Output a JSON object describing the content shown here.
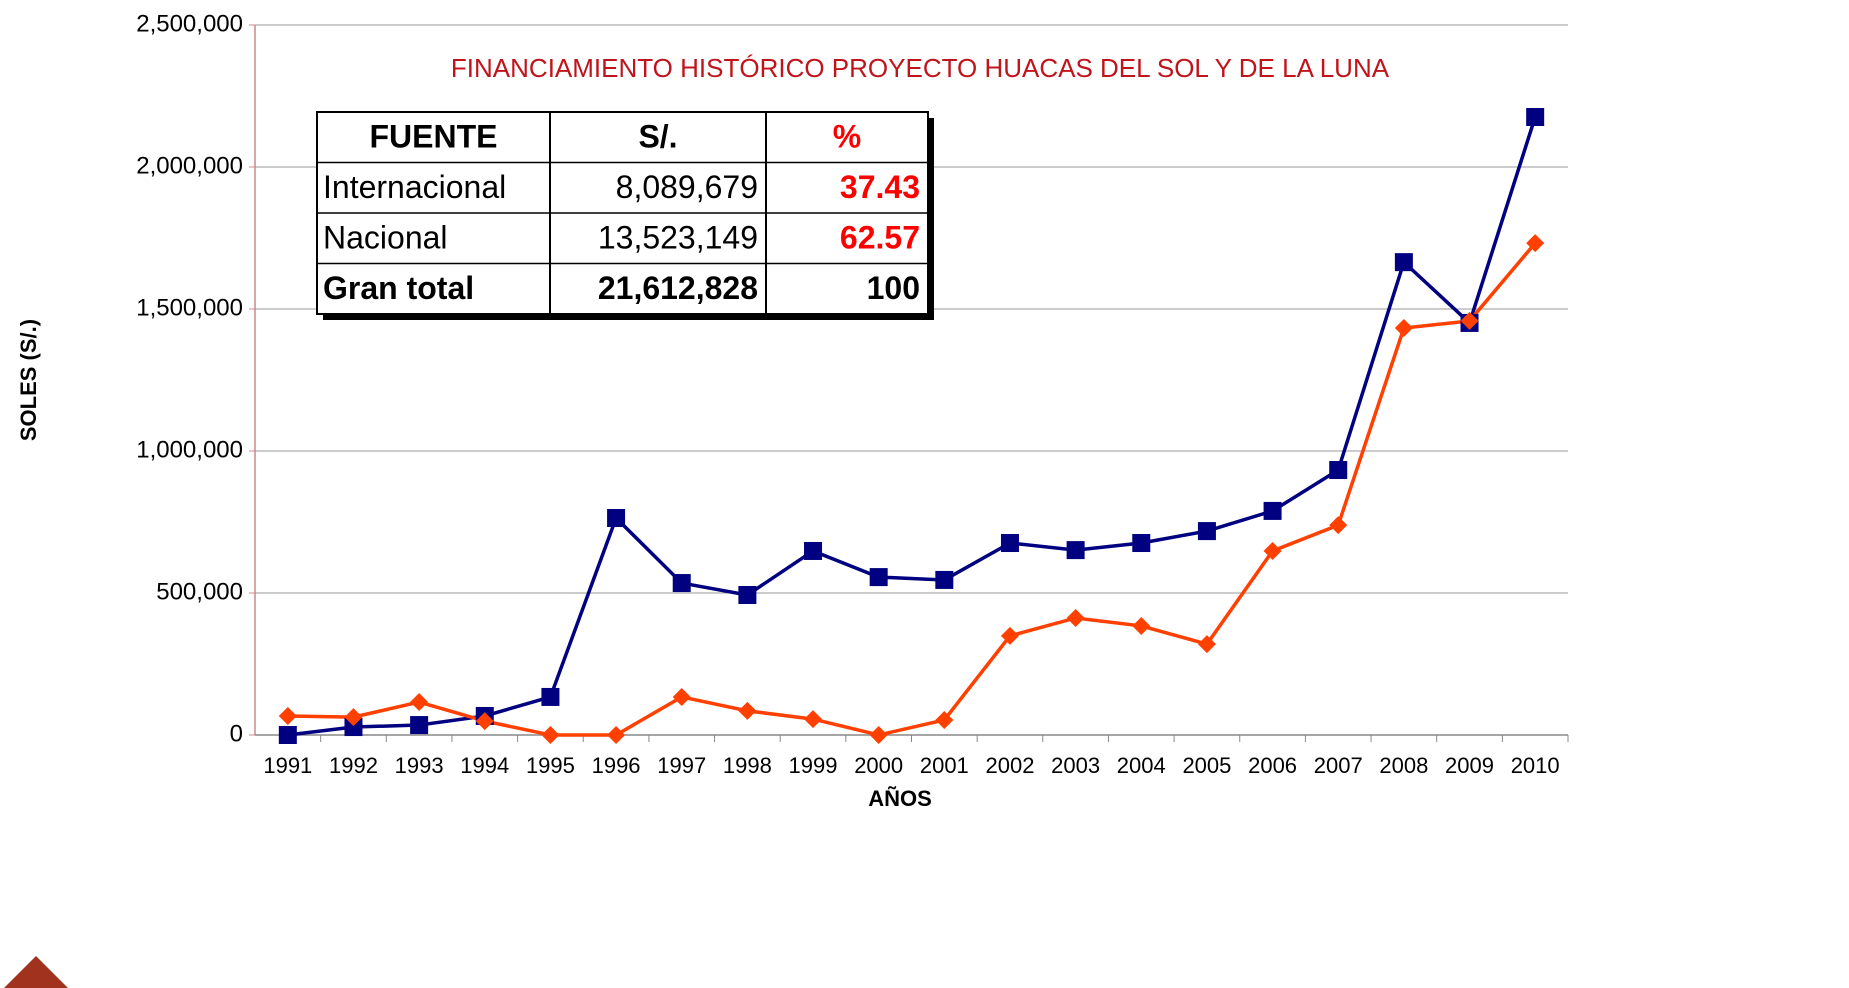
{
  "chart_data": {
    "type": "line",
    "title": "FINANCIAMIENTO  HISTÓRICO PROYECTO HUACAS DEL SOL Y DE LA LUNA",
    "x_label": "AÑOS",
    "y_label": "SOLES (S/.)",
    "categories": [
      "1991",
      "1992",
      "1993",
      "1994",
      "1995",
      "1996",
      "1997",
      "1998",
      "1999",
      "2000",
      "2001",
      "2002",
      "2003",
      "2004",
      "2005",
      "2006",
      "2007",
      "2008",
      "2009",
      "2010"
    ],
    "series": [
      {
        "color": "#000080",
        "marker": "square",
        "values": [
          0,
          28000,
          35000,
          67000,
          134000,
          764000,
          535000,
          493000,
          648000,
          556000,
          546000,
          676000,
          651000,
          676000,
          718000,
          789000,
          933000,
          1665000,
          1451000,
          2176000
        ]
      },
      {
        "color": "#ff4000",
        "marker": "diamond",
        "values": [
          67000,
          63000,
          116000,
          49000,
          0,
          0,
          134000,
          85000,
          56000,
          0,
          53000,
          349000,
          412000,
          384000,
          320000,
          648000,
          739000,
          1433000,
          1458000,
          1732000
        ]
      }
    ],
    "ylim": [
      0,
      2500000
    ],
    "yticks": [
      0,
      {
        "value": 500000,
        "label": "500,000"
      },
      {
        "value": 1000000,
        "label": "1,000,000"
      },
      {
        "value": 1500000,
        "label": "1,500,000"
      },
      {
        "value": 2000000,
        "label": "2,000,000"
      },
      {
        "value": 2500000,
        "label": "2,500,000"
      }
    ],
    "grid": true
  },
  "table": {
    "header": [
      "FUENTE",
      "S/.",
      "%"
    ],
    "rows": [
      [
        "Internacional",
        "8,089,679",
        "37.43"
      ],
      [
        "Nacional",
        "13,523,149",
        "62.57"
      ],
      [
        "Gran total",
        "21,612,828",
        "100"
      ]
    ]
  }
}
